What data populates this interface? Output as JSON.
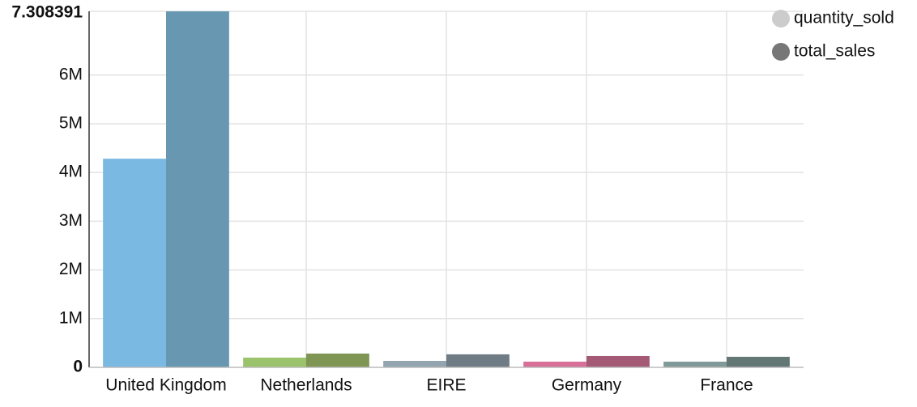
{
  "chart_data": {
    "type": "bar",
    "categories": [
      "United Kingdom",
      "Netherlands",
      "EIRE",
      "Germany",
      "France"
    ],
    "series": [
      {
        "name": "quantity_sold",
        "color": "#cccccc",
        "bar_colors": [
          "#7ab9e2",
          "#9bc36b",
          "#93a4b1",
          "#d86f98",
          "#7f9a98"
        ],
        "values": [
          4283000,
          200000,
          133000,
          117000,
          117000
        ]
      },
      {
        "name": "total_sales",
        "color": "#777777",
        "bar_colors": [
          "#6897b2",
          "#7e9553",
          "#6f7c85",
          "#a45a75",
          "#637775"
        ],
        "values": [
          7308391,
          283000,
          267000,
          233000,
          217000
        ]
      }
    ],
    "ylim": [
      0,
      7308391
    ],
    "yticks": [
      0,
      {
        "value": 1000000,
        "label": "1M"
      },
      {
        "value": 2000000,
        "label": "2M"
      },
      {
        "value": 3000000,
        "label": "3M"
      },
      {
        "value": 4000000,
        "label": "4M"
      },
      {
        "value": 5000000,
        "label": "5M"
      },
      {
        "value": 6000000,
        "label": "6M"
      },
      {
        "value": 7308391,
        "label": "7.308391"
      }
    ],
    "grid": true,
    "legend": "top-right"
  }
}
